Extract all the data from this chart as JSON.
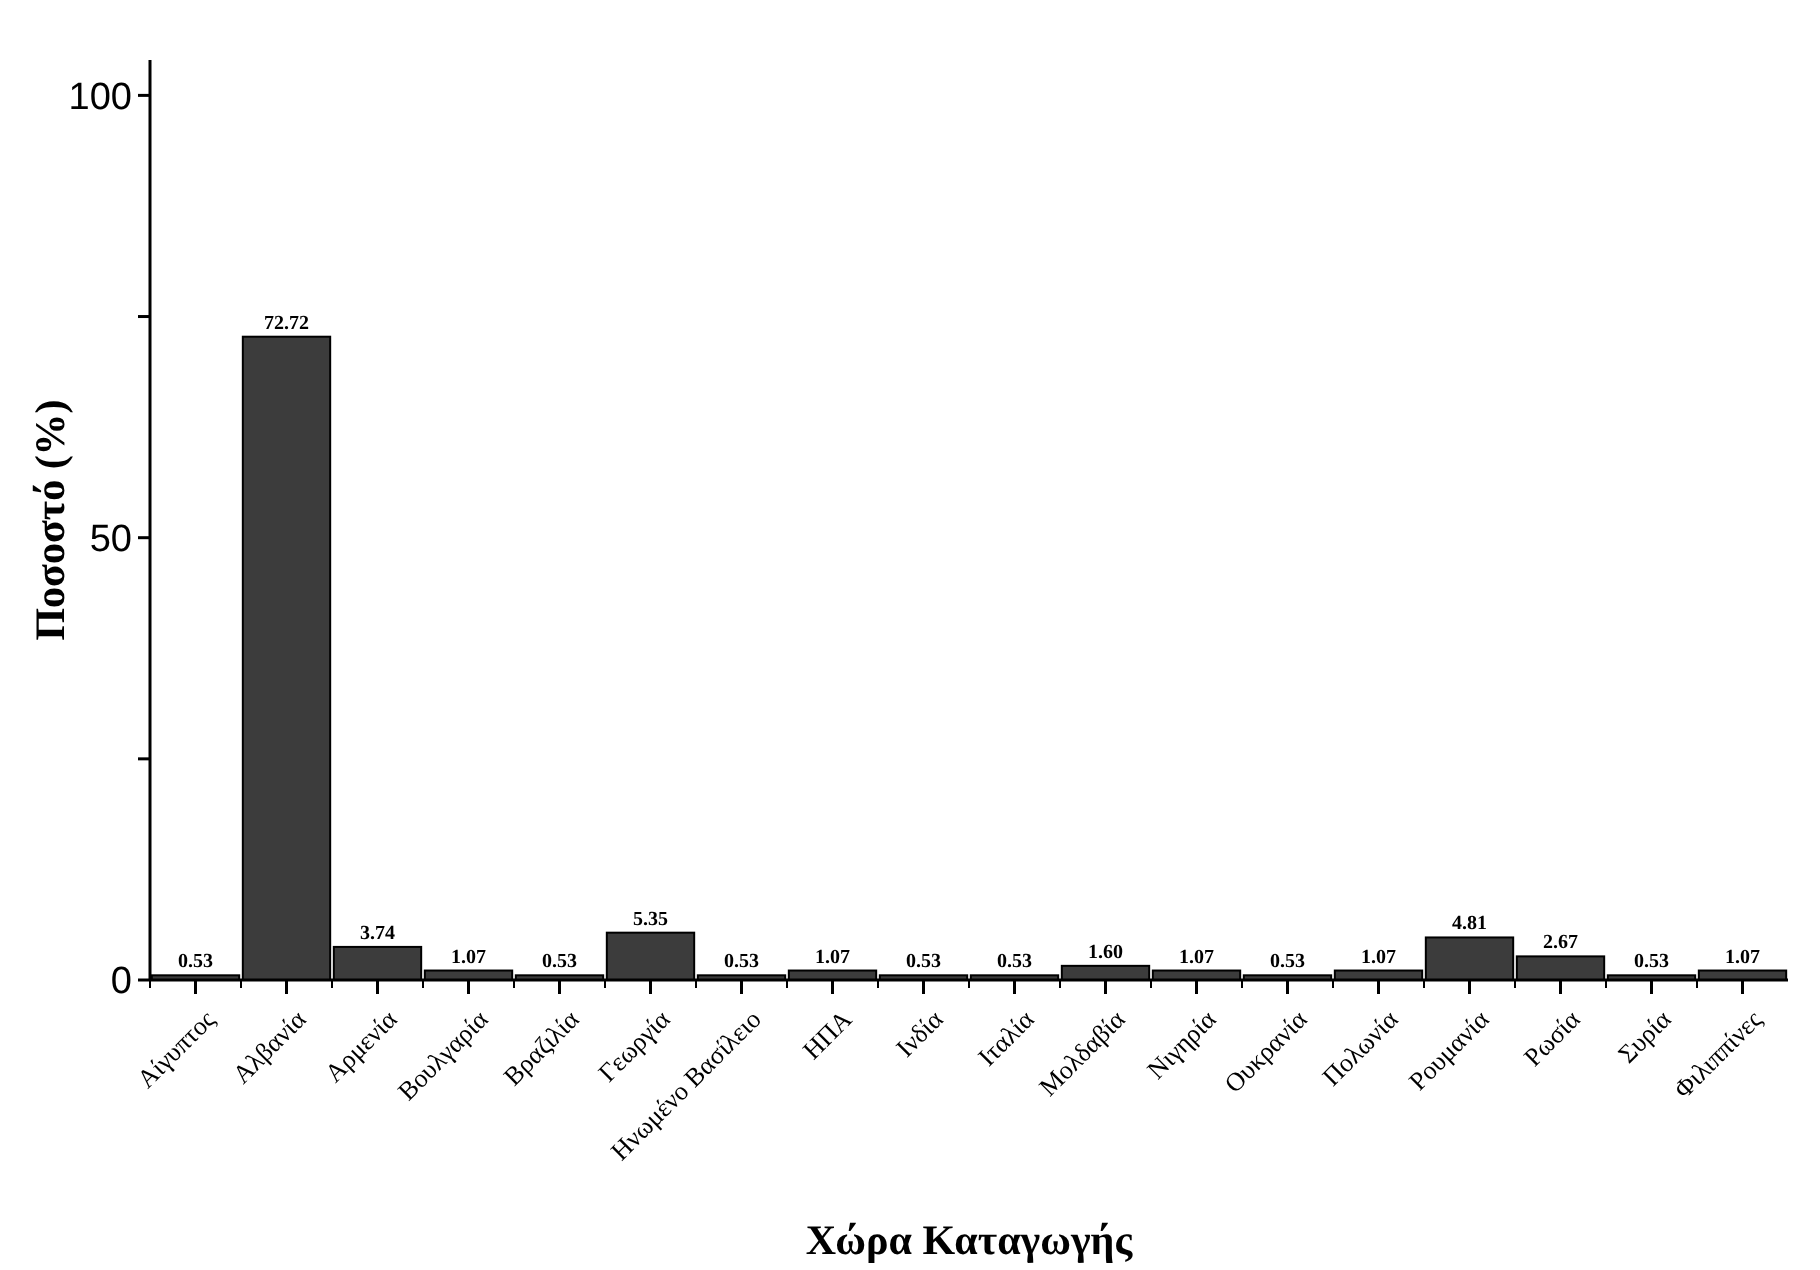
{
  "chart_data": {
    "type": "bar",
    "xlabel": "Χώρα Καταγωγής",
    "ylabel": "Ποσοστό (%)",
    "categories": [
      "Αίγυπτος",
      "Αλβανία",
      "Αρμενία",
      "Βουλγαρία",
      "Βραζιλία",
      "Γεωργία",
      "Ηνωμένο Βασίλειο",
      "ΗΠΑ",
      "Ινδία",
      "Ιταλία",
      "Μολδαβία",
      "Νιγηρία",
      "Ουκρανία",
      "Πολωνία",
      "Ρουμανία",
      "Ρωσία",
      "Συρία",
      "Φιλιππίνες"
    ],
    "values": [
      0.53,
      72.72,
      3.74,
      1.07,
      0.53,
      5.35,
      0.53,
      1.07,
      0.53,
      0.53,
      1.6,
      1.07,
      0.53,
      1.07,
      4.81,
      2.67,
      0.53,
      1.07
    ],
    "value_labels": [
      "0.53",
      "72.72",
      "3.74",
      "1.07",
      "0.53",
      "5.35",
      "0.53",
      "1.07",
      "0.53",
      "0.53",
      "1.60",
      "1.07",
      "0.53",
      "1.07",
      "4.81",
      "2.67",
      "0.53",
      "1.07"
    ],
    "color": "#3c3c3c",
    "ylim": [
      0,
      104
    ],
    "yticks": [
      0,
      {
        "value": 25,
        "label": null
      },
      50,
      {
        "value": 75,
        "label": null
      },
      100
    ],
    "grid": false
  }
}
